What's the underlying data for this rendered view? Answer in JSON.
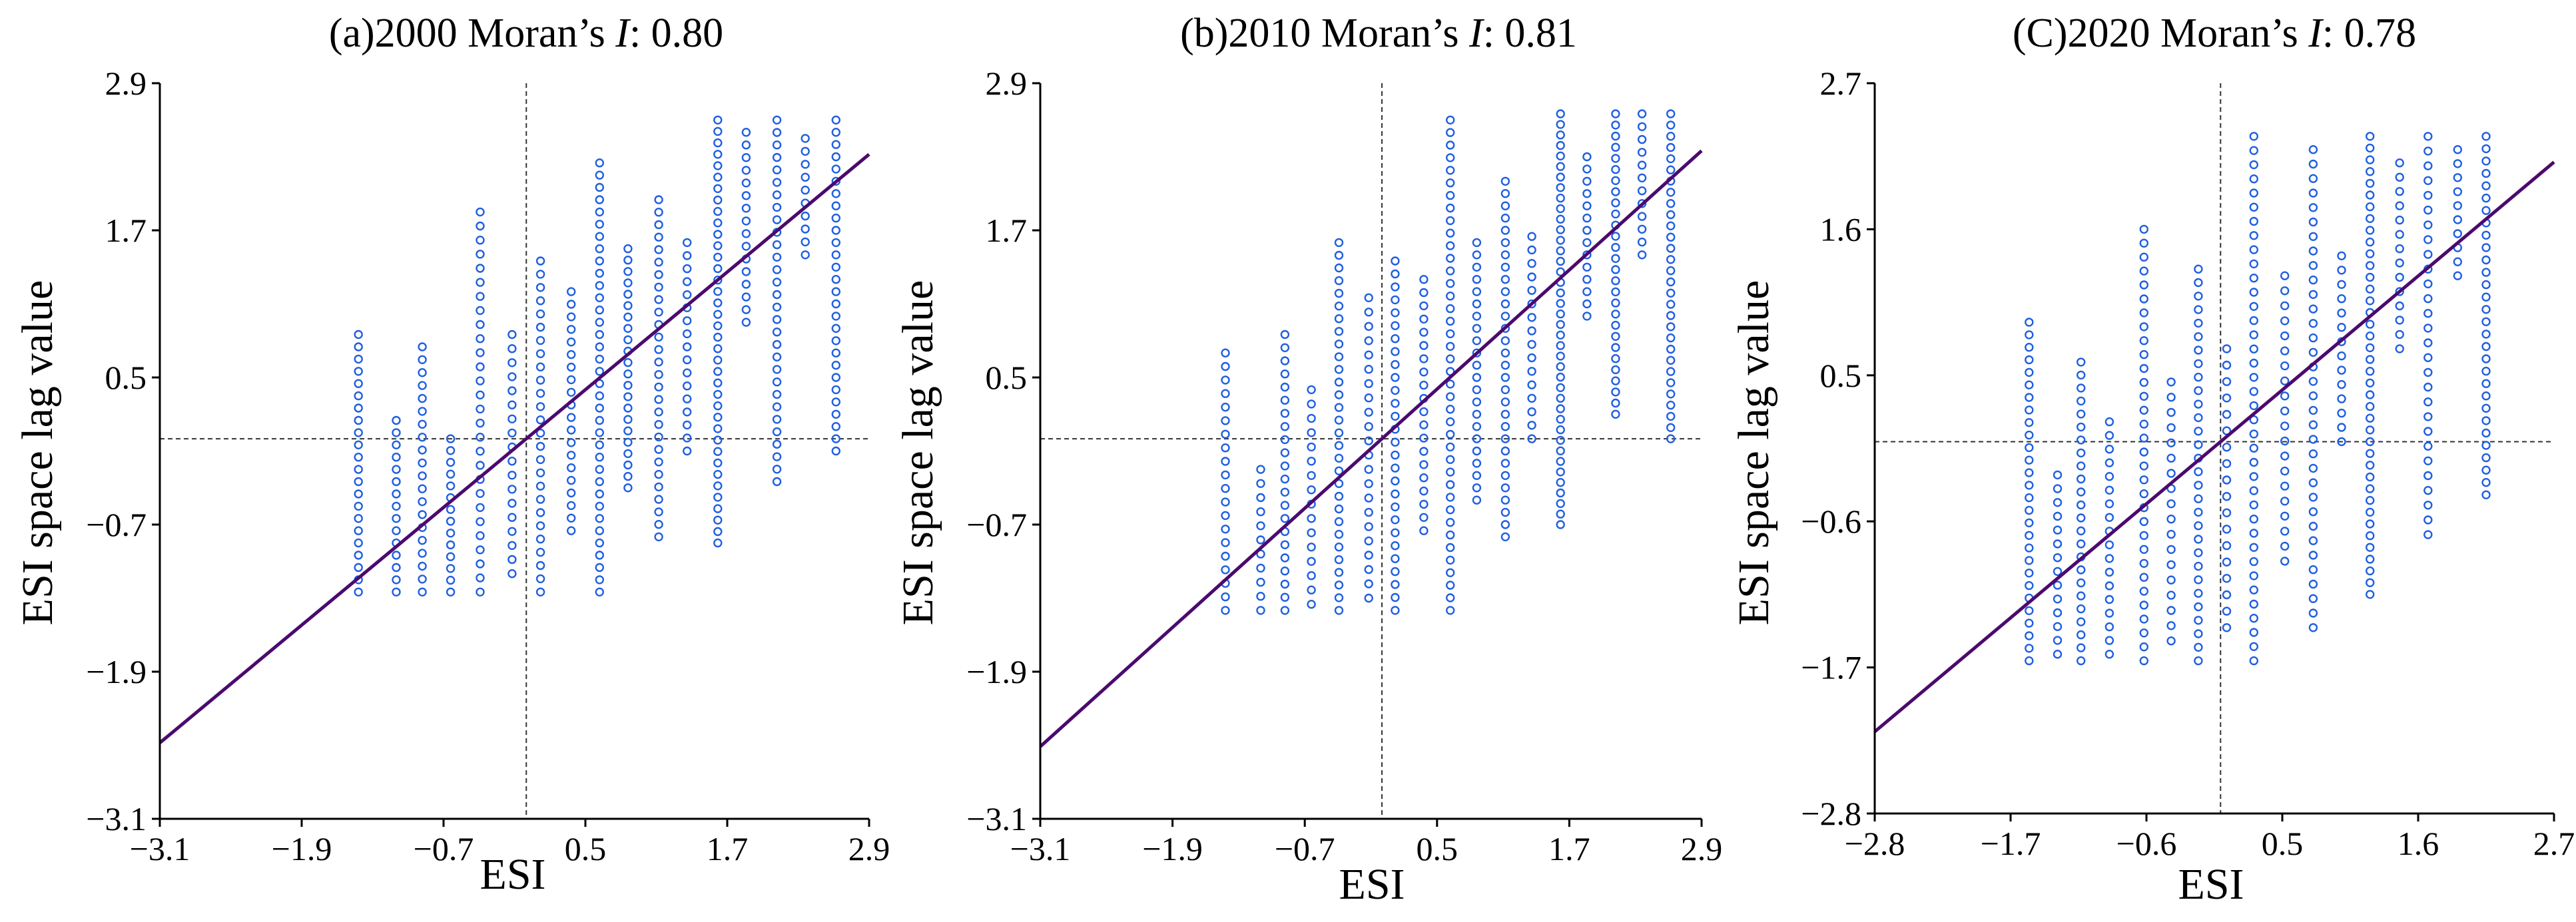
{
  "colors": {
    "points": "#1f5fe0",
    "regression": "#4b0a6d",
    "axis": "#000000",
    "reference": "#333333"
  },
  "chart_data": [
    {
      "type": "scatter",
      "title_prefix": "(a)2000 Moran’s ",
      "title_italic": "I",
      "title_suffix": ": 0.80",
      "moran_i": 0.8,
      "xlabel": "ESI",
      "ylabel": "ESI space lag value",
      "xlim": [
        -3.1,
        2.9
      ],
      "ylim": [
        -3.1,
        2.9
      ],
      "xticks": [
        -3.1,
        -1.9,
        -0.7,
        0.5,
        1.7,
        2.9
      ],
      "yticks": [
        -3.1,
        -1.9,
        -0.7,
        0.5,
        1.7,
        2.9
      ],
      "xtick_labels": [
        "−3.1",
        "−1.9",
        "−0.7",
        "0.5",
        "1.7",
        "2.9"
      ],
      "ytick_labels": [
        "−3.1",
        "−1.9",
        "−0.7",
        "0.5",
        "1.7",
        "2.9"
      ],
      "reference_lines": {
        "x": 0,
        "y": 0
      },
      "regression": {
        "slope": 0.8,
        "intercept": 0.0
      },
      "columns": [
        {
          "x": -1.42,
          "ymin": -1.25,
          "ymax": 0.85,
          "n": 22
        },
        {
          "x": -1.1,
          "ymin": -1.25,
          "ymax": 0.15,
          "n": 15
        },
        {
          "x": -0.88,
          "ymin": -1.25,
          "ymax": 0.75,
          "n": 20
        },
        {
          "x": -0.64,
          "ymin": -1.25,
          "ymax": 0.0,
          "n": 14
        },
        {
          "x": -0.39,
          "ymin": -1.25,
          "ymax": 1.85,
          "n": 28
        },
        {
          "x": -0.12,
          "ymin": -1.1,
          "ymax": 0.85,
          "n": 18
        },
        {
          "x": 0.12,
          "ymin": -1.25,
          "ymax": 1.45,
          "n": 26
        },
        {
          "x": 0.38,
          "ymin": -0.75,
          "ymax": 1.2,
          "n": 20
        },
        {
          "x": 0.62,
          "ymin": -1.25,
          "ymax": 2.25,
          "n": 36
        },
        {
          "x": 0.86,
          "ymin": -0.4,
          "ymax": 1.55,
          "n": 22
        },
        {
          "x": 1.12,
          "ymin": -0.8,
          "ymax": 1.95,
          "n": 28
        },
        {
          "x": 1.36,
          "ymin": -0.1,
          "ymax": 1.6,
          "n": 17
        },
        {
          "x": 1.62,
          "ymin": -0.85,
          "ymax": 2.6,
          "n": 38
        },
        {
          "x": 1.86,
          "ymin": 0.95,
          "ymax": 2.5,
          "n": 16
        },
        {
          "x": 2.12,
          "ymin": -0.35,
          "ymax": 2.6,
          "n": 30
        },
        {
          "x": 2.36,
          "ymin": 1.5,
          "ymax": 2.45,
          "n": 10
        },
        {
          "x": 2.62,
          "ymin": -0.1,
          "ymax": 2.6,
          "n": 28
        }
      ]
    },
    {
      "type": "scatter",
      "title_prefix": "(b)2010 Moran’s ",
      "title_italic": "I",
      "title_suffix": ": 0.81",
      "moran_i": 0.81,
      "xlabel": "ESI",
      "ylabel": "ESI space lag value",
      "xlim": [
        -3.1,
        2.9
      ],
      "ylim": [
        -3.1,
        2.9
      ],
      "xticks": [
        -3.1,
        -1.9,
        -0.7,
        0.5,
        1.7,
        2.9
      ],
      "yticks": [
        -3.1,
        -1.9,
        -0.7,
        0.5,
        1.7,
        2.9
      ],
      "xtick_labels": [
        "−3.1",
        "−1.9",
        "−0.7",
        "0.5",
        "1.7",
        "2.9"
      ],
      "ytick_labels": [
        "−3.1",
        "−1.9",
        "−0.7",
        "0.5",
        "1.7",
        "2.9"
      ],
      "reference_lines": {
        "x": 0,
        "y": 0
      },
      "regression": {
        "slope": 0.81,
        "intercept": 0.0
      },
      "columns": [
        {
          "x": -1.42,
          "ymin": -1.4,
          "ymax": 0.7,
          "n": 20
        },
        {
          "x": -1.1,
          "ymin": -1.4,
          "ymax": -0.25,
          "n": 11
        },
        {
          "x": -0.88,
          "ymin": -1.4,
          "ymax": 0.85,
          "n": 22
        },
        {
          "x": -0.64,
          "ymin": -1.35,
          "ymax": 0.4,
          "n": 16
        },
        {
          "x": -0.39,
          "ymin": -1.4,
          "ymax": 1.6,
          "n": 30
        },
        {
          "x": -0.12,
          "ymin": -1.3,
          "ymax": 1.15,
          "n": 22
        },
        {
          "x": 0.12,
          "ymin": -1.4,
          "ymax": 1.45,
          "n": 28
        },
        {
          "x": 0.38,
          "ymin": -0.75,
          "ymax": 1.3,
          "n": 20
        },
        {
          "x": 0.62,
          "ymin": -1.4,
          "ymax": 2.6,
          "n": 40
        },
        {
          "x": 0.86,
          "ymin": -0.5,
          "ymax": 1.6,
          "n": 22
        },
        {
          "x": 1.12,
          "ymin": -0.8,
          "ymax": 2.1,
          "n": 30
        },
        {
          "x": 1.36,
          "ymin": 0.0,
          "ymax": 1.65,
          "n": 16
        },
        {
          "x": 1.62,
          "ymin": -0.7,
          "ymax": 2.65,
          "n": 40
        },
        {
          "x": 1.86,
          "ymin": 1.0,
          "ymax": 2.3,
          "n": 14
        },
        {
          "x": 2.12,
          "ymin": 0.2,
          "ymax": 2.65,
          "n": 28
        },
        {
          "x": 2.36,
          "ymin": 1.5,
          "ymax": 2.65,
          "n": 12
        },
        {
          "x": 2.62,
          "ymin": 0.0,
          "ymax": 2.65,
          "n": 30
        }
      ]
    },
    {
      "type": "scatter",
      "title_prefix": "(C)2020 Moran’s ",
      "title_italic": "I",
      "title_suffix": ": 0.78",
      "moran_i": 0.78,
      "xlabel": "ESI",
      "ylabel": "ESI space lag value",
      "xlim": [
        -2.8,
        2.7
      ],
      "ylim": [
        -2.8,
        2.7
      ],
      "xticks": [
        -2.8,
        -1.7,
        -0.6,
        0.5,
        1.6,
        2.7
      ],
      "yticks": [
        -2.8,
        -1.7,
        -0.6,
        0.5,
        1.6,
        2.7
      ],
      "xtick_labels": [
        "−2.8",
        "−1.7",
        "−0.6",
        "0.5",
        "1.6",
        "2.7"
      ],
      "ytick_labels": [
        "−2.8",
        "−1.7",
        "−0.6",
        "0.5",
        "1.6",
        "2.7"
      ],
      "reference_lines": {
        "x": 0,
        "y": 0
      },
      "regression": {
        "slope": 0.78,
        "intercept": 0.0
      },
      "columns": [
        {
          "x": -1.55,
          "ymin": -1.65,
          "ymax": 0.9,
          "n": 28
        },
        {
          "x": -1.32,
          "ymin": -1.6,
          "ymax": -0.25,
          "n": 14
        },
        {
          "x": -1.13,
          "ymin": -1.65,
          "ymax": 0.6,
          "n": 24
        },
        {
          "x": -0.9,
          "ymin": -1.6,
          "ymax": 0.15,
          "n": 18
        },
        {
          "x": -0.62,
          "ymin": -1.65,
          "ymax": 1.6,
          "n": 32
        },
        {
          "x": -0.4,
          "ymin": -1.5,
          "ymax": 0.45,
          "n": 18
        },
        {
          "x": -0.18,
          "ymin": -1.65,
          "ymax": 1.3,
          "n": 30
        },
        {
          "x": 0.05,
          "ymin": -1.4,
          "ymax": 0.7,
          "n": 18
        },
        {
          "x": 0.27,
          "ymin": -1.65,
          "ymax": 2.3,
          "n": 38
        },
        {
          "x": 0.52,
          "ymin": -0.9,
          "ymax": 1.25,
          "n": 20
        },
        {
          "x": 0.75,
          "ymin": -1.4,
          "ymax": 2.2,
          "n": 34
        },
        {
          "x": 0.98,
          "ymin": 0.0,
          "ymax": 1.4,
          "n": 14
        },
        {
          "x": 1.21,
          "ymin": -1.15,
          "ymax": 2.3,
          "n": 40
        },
        {
          "x": 1.45,
          "ymin": 0.7,
          "ymax": 2.1,
          "n": 14
        },
        {
          "x": 1.68,
          "ymin": -0.7,
          "ymax": 2.3,
          "n": 28
        },
        {
          "x": 1.92,
          "ymin": 1.25,
          "ymax": 2.2,
          "n": 10
        },
        {
          "x": 2.15,
          "ymin": -0.4,
          "ymax": 2.3,
          "n": 30
        }
      ]
    }
  ]
}
